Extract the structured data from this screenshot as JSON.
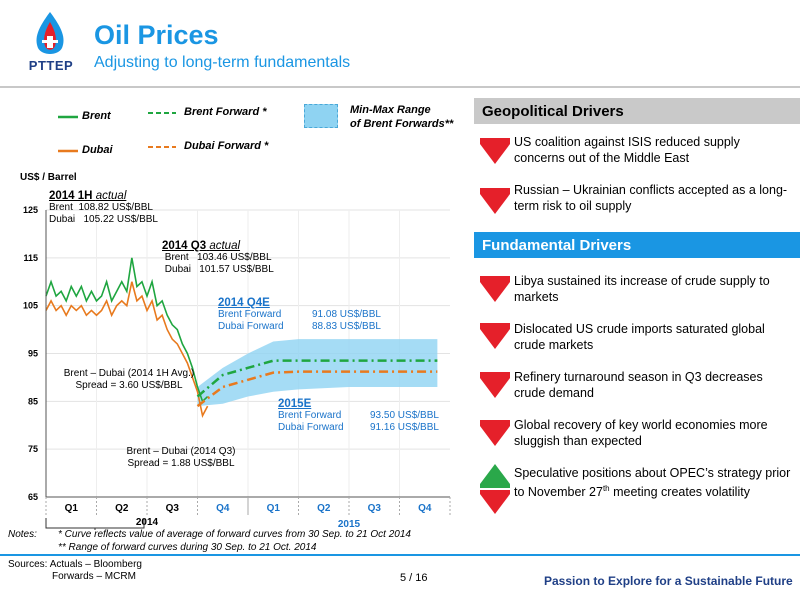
{
  "header": {
    "logo_text": "PTTEP",
    "title": "Oil Prices",
    "subtitle": "Adjusting to long-term fundamentals"
  },
  "legend": {
    "brent": "Brent",
    "dubai": "Dubai",
    "brent_forward": "Brent Forward *",
    "dubai_forward": "Dubai Forward *",
    "range_line1": "Min-Max Range",
    "range_line2": "of Brent Forwards**"
  },
  "colors": {
    "brent": "#1fa640",
    "dubai": "#e87a1e",
    "range": "#8fd3f2",
    "accent": "#1a96e3",
    "down_arrow": "#e5202a",
    "up_arrow": "#2aa84a"
  },
  "chart_data": {
    "type": "line",
    "ylabel": "US$ / Barrel",
    "ylim": [
      65,
      125
    ],
    "yticks": [
      65,
      75,
      85,
      95,
      105,
      115,
      125
    ],
    "x_quarters": [
      "Q1",
      "Q2",
      "Q3",
      "Q4",
      "Q1",
      "Q2",
      "Q3",
      "Q4"
    ],
    "x_years": [
      "2014",
      "2015"
    ],
    "series": [
      {
        "name": "Brent",
        "x": [
          0.0,
          0.1,
          0.2,
          0.3,
          0.4,
          0.5,
          0.6,
          0.7,
          0.8,
          0.9,
          1.0,
          1.1,
          1.2,
          1.3,
          1.4,
          1.5,
          1.6,
          1.7,
          1.8,
          1.9,
          2.0,
          2.1,
          2.2,
          2.3,
          2.4,
          2.5,
          2.6,
          2.7,
          2.8,
          2.9,
          3.0,
          3.1,
          3.2
        ],
        "values": [
          107,
          110,
          107,
          108,
          106,
          109,
          107,
          109,
          106,
          108,
          106,
          107,
          110,
          106,
          108,
          110,
          108,
          115,
          109,
          110,
          107,
          110,
          105,
          106,
          103,
          101,
          100,
          97,
          95,
          92,
          88,
          85,
          86
        ]
      },
      {
        "name": "Dubai",
        "x": [
          0.0,
          0.1,
          0.2,
          0.3,
          0.4,
          0.5,
          0.6,
          0.7,
          0.8,
          0.9,
          1.0,
          1.1,
          1.2,
          1.3,
          1.4,
          1.5,
          1.6,
          1.7,
          1.8,
          1.9,
          2.0,
          2.1,
          2.2,
          2.3,
          2.4,
          2.5,
          2.6,
          2.7,
          2.8,
          2.9,
          3.0,
          3.1,
          3.2
        ],
        "values": [
          104,
          106,
          104,
          105,
          103,
          105,
          104,
          105,
          103,
          104,
          103,
          104,
          106,
          103,
          105,
          106,
          105,
          110,
          106,
          107,
          104,
          106,
          102,
          103,
          100,
          98,
          97,
          95,
          93,
          90,
          87,
          82,
          84
        ]
      },
      {
        "name": "Brent Forward",
        "x": [
          3.0,
          3.5,
          4.0,
          4.5,
          5.0,
          6.0,
          7.0,
          7.75
        ],
        "values": [
          86,
          90.5,
          92,
          93.5,
          93.5,
          93.5,
          93.5,
          93.5
        ]
      },
      {
        "name": "Dubai Forward",
        "x": [
          3.0,
          3.5,
          4.0,
          4.5,
          5.0,
          6.0,
          7.0,
          7.75
        ],
        "values": [
          84,
          88,
          89.5,
          91,
          91.2,
          91.2,
          91.2,
          91.2
        ]
      },
      {
        "name": "Min-Max Range of Brent Forwards",
        "x": [
          3.0,
          3.5,
          4.0,
          4.5,
          5.0,
          6.0,
          7.0,
          7.75
        ],
        "low": [
          84,
          84.5,
          86,
          87,
          87.5,
          88,
          88,
          88
        ],
        "high": [
          88,
          92,
          95,
          97.5,
          98,
          98,
          98,
          98
        ]
      }
    ]
  },
  "annotations": {
    "a2014h1": {
      "title": "2014 1H",
      "title_suffix": "actual",
      "brent_label": "Brent",
      "brent_value": "108.82 US$/BBL",
      "dubai_label": "Dubai",
      "dubai_value": "105.22 US$/BBL"
    },
    "a2014q3": {
      "title": "2014 Q3",
      "title_suffix": "actual",
      "brent_label": "Brent",
      "brent_value": "103.46 US$/BBL",
      "dubai_label": "Dubai",
      "dubai_value": "101.57 US$/BBL"
    },
    "a2014q4e": {
      "title": "2014 Q4E",
      "brent_label": "Brent Forward",
      "brent_value": "91.08 US$/BBL",
      "dubai_label": "Dubai Forward",
      "dubai_value": "88.83 US$/BBL"
    },
    "a2015e": {
      "title": "2015E",
      "brent_label": "Brent Forward",
      "brent_value": "93.50 US$/BBL",
      "dubai_label": "Dubai Forward",
      "dubai_value": "91.16 US$/BBL"
    },
    "spread_1h_line1": "Brent – Dubai (2014 1H Avg.)",
    "spread_1h_line2": "Spread = 3.60 US$/BBL",
    "spread_q3_line1": "Brent – Dubai (2014 Q3)",
    "spread_q3_line2": "Spread = 1.88 US$/BBL"
  },
  "geopolitical": {
    "header": "Geopolitical Drivers",
    "items": [
      {
        "text": "US coalition against ISIS reduced supply concerns out of the Middle East",
        "direction": "down"
      },
      {
        "text": "Russian – Ukrainian conflicts accepted as a long-term risk to oil supply",
        "direction": "down"
      }
    ]
  },
  "fundamental": {
    "header": "Fundamental Drivers",
    "items": [
      {
        "text": "Libya sustained its increase of crude supply to markets",
        "direction": "down"
      },
      {
        "text": "Dislocated US crude imports saturated global crude markets",
        "direction": "down"
      },
      {
        "text": "Refinery turnaround season in Q3 decreases crude demand",
        "direction": "down"
      },
      {
        "text": "Global recovery of key world economies more sluggish than expected",
        "direction": "down"
      },
      {
        "text_before": "Speculative positions about OPEC’s strategy prior to November 27",
        "superscript": "th",
        "text_after": " meeting creates volatility",
        "direction": "up-down"
      }
    ]
  },
  "footer": {
    "notes_label": "Notes:",
    "note1": "*  Curve reflects value of average of forward curves from 30 Sep. to 21 Oct 2014",
    "note2": "** Range of forward curves during 30 Sep. to 21 Oct. 2014",
    "sources_line1": "Sources: Actuals – Bloomberg",
    "sources_line2": "Forwards – MCRM",
    "page": "5 / 16",
    "tagline": "Passion to Explore for a Sustainable Future"
  }
}
